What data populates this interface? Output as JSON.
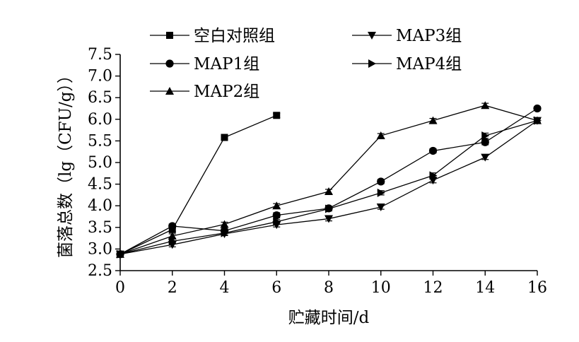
{
  "chart_data": {
    "type": "line",
    "xlabel": "贮藏时间/d",
    "ylabel": "菌落总数（lg（CFU/g））",
    "xlim": [
      0,
      16
    ],
    "ylim": [
      2.5,
      7.5
    ],
    "x_ticks": [
      "0",
      "2",
      "4",
      "6",
      "8",
      "10",
      "12",
      "14",
      "16"
    ],
    "y_ticks": [
      "2.5",
      "3.0",
      "3.5",
      "4.0",
      "4.5",
      "5.0",
      "5.5",
      "6.0",
      "6.5",
      "7.0",
      "7.5"
    ],
    "grid": false,
    "legend_position": "top",
    "series": [
      {
        "name": "空白对照组",
        "marker": "square",
        "x": [
          0,
          2,
          4,
          6
        ],
        "values": [
          2.88,
          3.45,
          5.58,
          6.09
        ],
        "error": [
          0.04,
          0.05,
          0.05,
          0.05
        ]
      },
      {
        "name": "MAP1组",
        "marker": "circle",
        "x": [
          0,
          2,
          4,
          6,
          8,
          10,
          12,
          14,
          16
        ],
        "values": [
          2.88,
          3.53,
          3.42,
          3.78,
          3.94,
          4.56,
          5.27,
          5.47,
          6.25
        ],
        "error": [
          0.04,
          0.05,
          0.05,
          0.06,
          0.05,
          0.05,
          0.05,
          0.06,
          0.04
        ]
      },
      {
        "name": "MAP2组",
        "marker": "triangle-up",
        "x": [
          0,
          2,
          4,
          6,
          8,
          10,
          12,
          14,
          16
        ],
        "values": [
          2.88,
          3.3,
          3.57,
          4.0,
          4.33,
          5.62,
          5.97,
          6.32,
          5.97
        ],
        "error": [
          0.04,
          0.05,
          0.05,
          0.05,
          0.05,
          0.05,
          0.05,
          0.05,
          0.04
        ]
      },
      {
        "name": "MAP3组",
        "marker": "triangle-down",
        "x": [
          0,
          2,
          4,
          6,
          8,
          10,
          12,
          14,
          16
        ],
        "values": [
          2.88,
          3.1,
          3.35,
          3.56,
          3.7,
          3.97,
          4.59,
          5.12,
          5.97
        ],
        "error": [
          0.04,
          0.05,
          0.04,
          0.05,
          0.05,
          0.05,
          0.06,
          0.05,
          0.04
        ]
      },
      {
        "name": "MAP4组",
        "marker": "triangle-right",
        "x": [
          0,
          2,
          4,
          6,
          8,
          10,
          12,
          14,
          16
        ],
        "values": [
          2.88,
          3.18,
          3.37,
          3.63,
          3.93,
          4.3,
          4.7,
          5.62,
          5.97
        ],
        "error": [
          0.04,
          0.05,
          0.04,
          0.05,
          0.05,
          0.05,
          0.06,
          0.06,
          0.04
        ]
      }
    ]
  }
}
